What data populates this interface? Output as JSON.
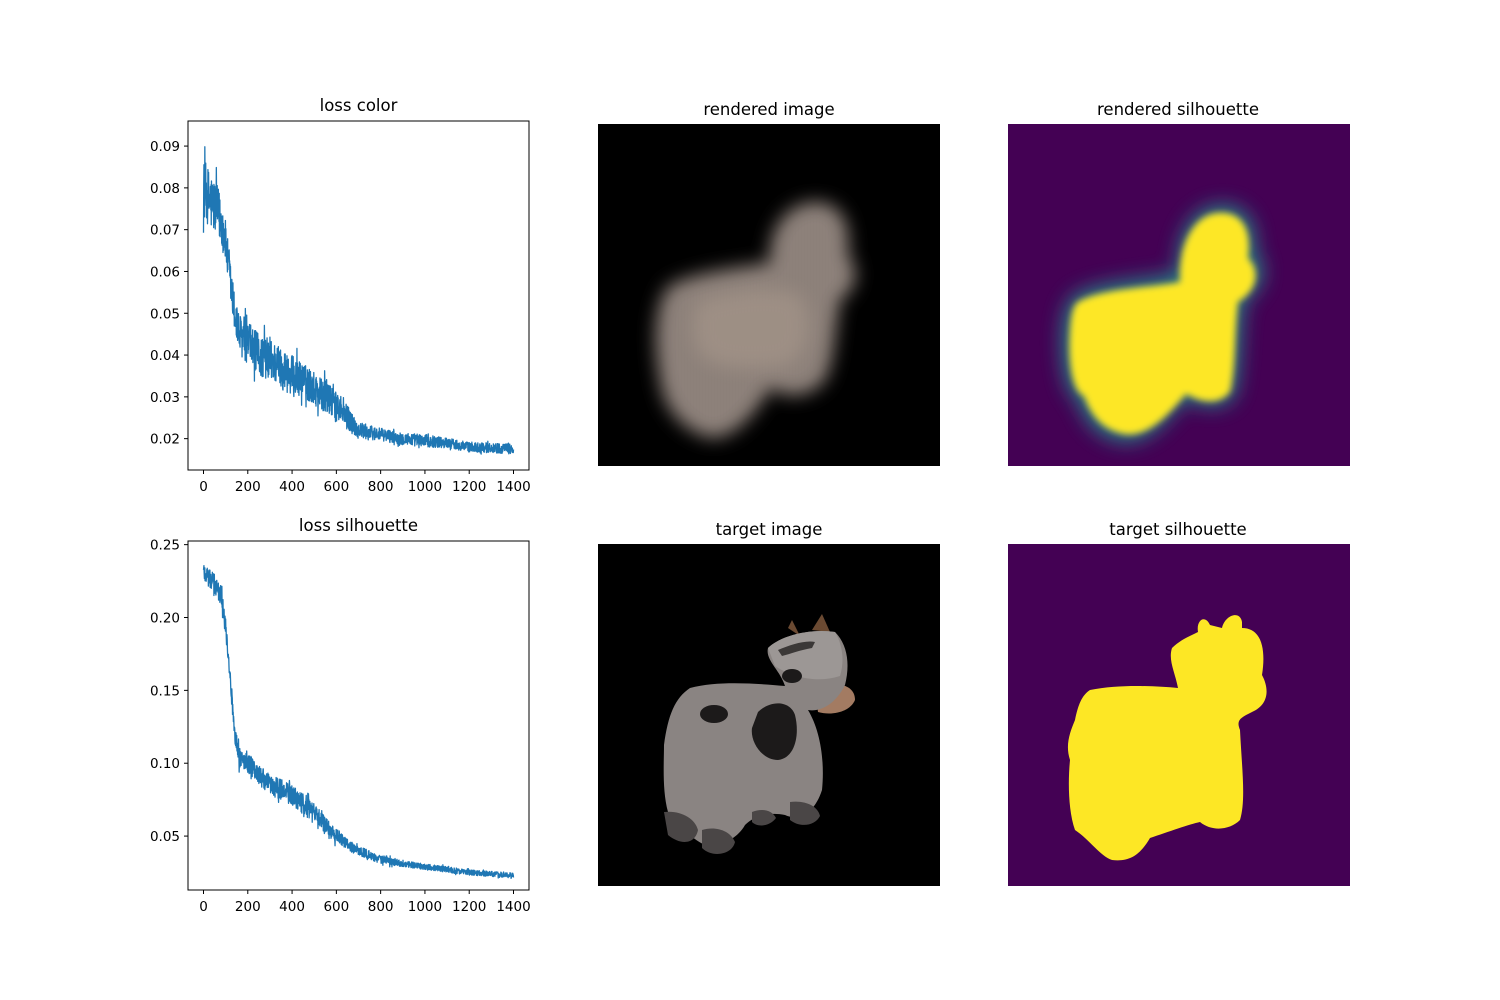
{
  "chart_data": [
    {
      "type": "line",
      "title": "loss color",
      "xlabel": "",
      "ylabel": "",
      "xlim": [
        -70,
        1470
      ],
      "ylim": [
        0.0125,
        0.096
      ],
      "xticks": [
        "0",
        "200",
        "400",
        "600",
        "800",
        "1000",
        "1200",
        "1400"
      ],
      "yticks": [
        "0.02",
        "0.03",
        "0.04",
        "0.05",
        "0.06",
        "0.07",
        "0.08",
        "0.09"
      ],
      "grid": false,
      "color": "#1f77b4",
      "x": [
        0,
        20,
        40,
        60,
        80,
        100,
        120,
        140,
        160,
        200,
        250,
        300,
        350,
        400,
        450,
        500,
        550,
        600,
        650,
        700,
        800,
        900,
        1000,
        1100,
        1200,
        1300,
        1400
      ],
      "y": [
        0.08,
        0.078,
        0.076,
        0.075,
        0.072,
        0.067,
        0.058,
        0.05,
        0.045,
        0.043,
        0.04,
        0.039,
        0.037,
        0.035,
        0.034,
        0.032,
        0.03,
        0.028,
        0.025,
        0.022,
        0.021,
        0.02,
        0.0195,
        0.019,
        0.018,
        0.0178,
        0.0175
      ],
      "noise": [
        0.007,
        0.007,
        0.007,
        0.006,
        0.006,
        0.005,
        0.005,
        0.005,
        0.005,
        0.005,
        0.005,
        0.005,
        0.005,
        0.005,
        0.004,
        0.004,
        0.004,
        0.003,
        0.003,
        0.002,
        0.0015,
        0.0015,
        0.0015,
        0.0012,
        0.0012,
        0.0012,
        0.0012
      ]
    },
    {
      "type": "line",
      "title": "loss silhouette",
      "xlabel": "",
      "ylabel": "",
      "xlim": [
        -70,
        1470
      ],
      "ylim": [
        0.013,
        0.2525
      ],
      "xticks": [
        "0",
        "200",
        "400",
        "600",
        "800",
        "1000",
        "1200",
        "1400"
      ],
      "yticks": [
        "0.05",
        "0.10",
        "0.15",
        "0.20",
        "0.25"
      ],
      "grid": false,
      "color": "#1f77b4",
      "x": [
        0,
        40,
        80,
        100,
        120,
        140,
        160,
        200,
        250,
        300,
        350,
        400,
        450,
        500,
        550,
        600,
        650,
        700,
        800,
        900,
        1000,
        1100,
        1200,
        1300,
        1400
      ],
      "y": [
        0.232,
        0.225,
        0.215,
        0.195,
        0.16,
        0.12,
        0.105,
        0.1,
        0.092,
        0.085,
        0.082,
        0.078,
        0.072,
        0.066,
        0.058,
        0.05,
        0.044,
        0.04,
        0.034,
        0.031,
        0.029,
        0.027,
        0.025,
        0.024,
        0.023
      ],
      "noise": [
        0.007,
        0.007,
        0.007,
        0.006,
        0.005,
        0.006,
        0.007,
        0.007,
        0.007,
        0.007,
        0.007,
        0.007,
        0.007,
        0.006,
        0.006,
        0.005,
        0.004,
        0.003,
        0.003,
        0.002,
        0.002,
        0.002,
        0.0018,
        0.0018,
        0.0018
      ]
    },
    {
      "type": "image",
      "title": "rendered image",
      "content": "blurry soft-edged pale grey cow shape on black background"
    },
    {
      "type": "image",
      "title": "rendered silhouette",
      "colormap": [
        "#440154",
        "#21918c",
        "#fde725"
      ],
      "content": "soft-edged yellow cow silhouette on dark purple background"
    },
    {
      "type": "image",
      "title": "target image",
      "content": "grey spotted toy cow with brown horns on black background"
    },
    {
      "type": "image",
      "title": "target silhouette",
      "colormap": [
        "#440154",
        "#fde725"
      ],
      "content": "sharp yellow cow silhouette on dark purple background"
    }
  ]
}
